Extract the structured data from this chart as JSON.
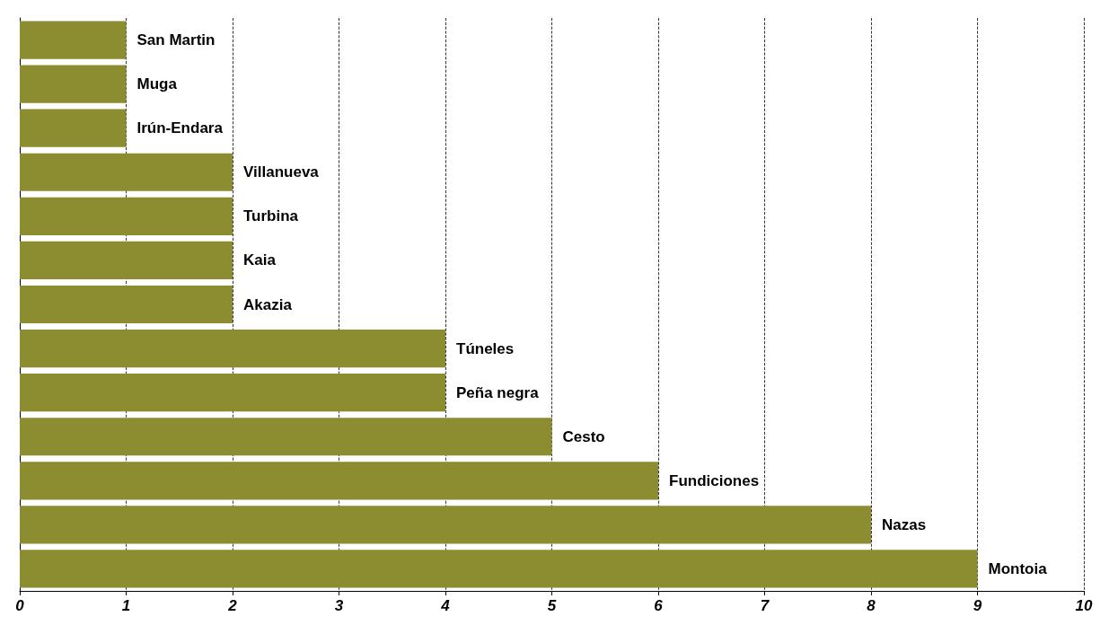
{
  "chart_data": {
    "type": "bar",
    "orientation": "horizontal",
    "categories": [
      "San Martin",
      "Muga",
      "Irún-Endara",
      "Villanueva",
      "Turbina",
      "Kaia",
      "Akazia",
      "Túneles",
      "Peña negra",
      "Cesto",
      "Fundiciones",
      "Nazas",
      "Montoia"
    ],
    "values": [
      1,
      1,
      1,
      2,
      2,
      2,
      2,
      4,
      4,
      5,
      6,
      8,
      9
    ],
    "color": "#8c8c30",
    "xlim": [
      0,
      10
    ],
    "xticks": [
      0,
      1,
      2,
      3,
      4,
      5,
      6,
      7,
      8,
      9,
      10
    ],
    "grid": "x",
    "line_style": "dashed",
    "tick_labels": "x"
  }
}
